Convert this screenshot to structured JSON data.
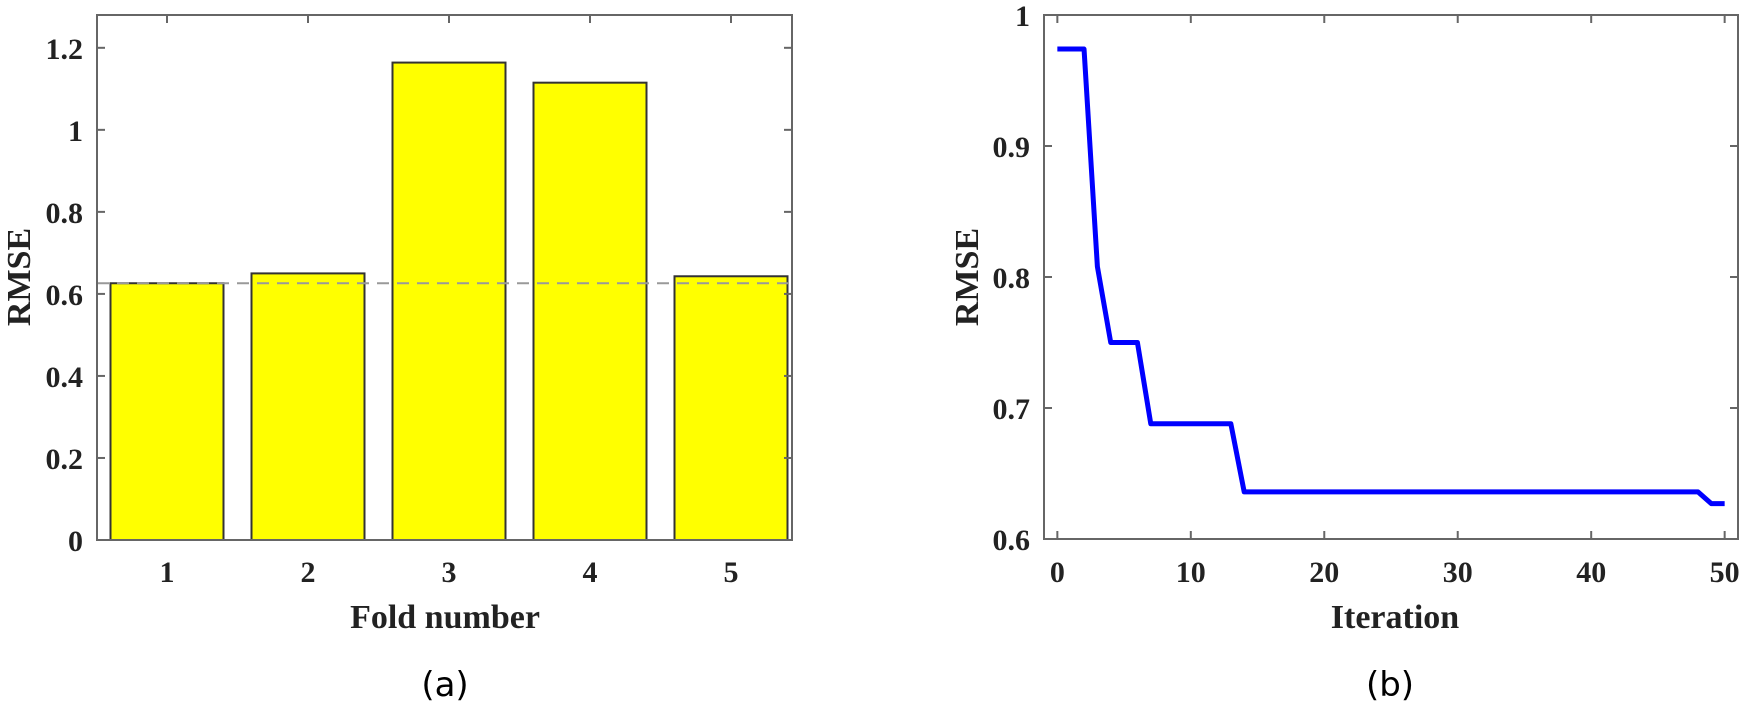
{
  "chart_data": [
    {
      "type": "bar",
      "panel_label": "(a)",
      "title": "",
      "xlabel": "Fold number",
      "ylabel": "RMSE",
      "categories": [
        "1",
        "2",
        "3",
        "4",
        "5"
      ],
      "values": [
        0.626,
        0.65,
        1.164,
        1.115,
        0.643
      ],
      "reference_line": {
        "value": 0.626,
        "style": "dashed",
        "color": "#999999"
      },
      "ylim": [
        0,
        1.28
      ],
      "yticks": [
        "0",
        "0.2",
        "0.4",
        "0.6",
        "0.8",
        "1",
        "1.2"
      ],
      "bar_color": "#ffff00",
      "edge_color": "#333333",
      "grid": false,
      "legend": null
    },
    {
      "type": "line",
      "panel_label": "(b)",
      "title": "",
      "xlabel": "Iteration",
      "ylabel": "RMSE",
      "x": [
        0,
        2,
        3,
        4,
        6,
        7,
        13,
        14,
        48,
        49,
        50
      ],
      "series": [
        {
          "name": "RMSE",
          "color": "#0000ff",
          "values": [
            0.974,
            0.974,
            0.808,
            0.75,
            0.75,
            0.688,
            0.688,
            0.636,
            0.636,
            0.627,
            0.627
          ]
        }
      ],
      "xlim": [
        -1,
        51
      ],
      "ylim": [
        0.6,
        1.0
      ],
      "xticks": [
        "0",
        "10",
        "20",
        "30",
        "40",
        "50"
      ],
      "yticks": [
        "0.6",
        "0.7",
        "0.8",
        "0.9",
        "1"
      ],
      "grid": false,
      "legend": null
    }
  ]
}
